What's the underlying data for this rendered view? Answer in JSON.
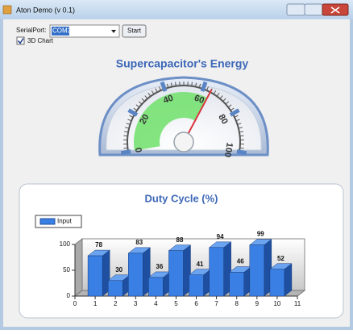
{
  "window": {
    "title": "Aton Demo (v 0.1)"
  },
  "controls": {
    "serial_label": "SerialPort:",
    "port": "COM3",
    "start_button": "Start",
    "checkbox_label": "3D Chart",
    "checkbox_checked": true
  },
  "gauge": {
    "title": "Supercapacitor's Energy",
    "value": 64,
    "lim": [
      0,
      100
    ],
    "ticks": [
      0,
      20,
      40,
      60,
      80,
      100
    ]
  },
  "duty_chart": {
    "type": "bar3d",
    "title": "Duty Cycle (%)",
    "x": [
      1,
      2,
      3,
      4,
      5,
      6,
      7,
      8,
      9,
      10
    ],
    "series": [
      {
        "name": "Input",
        "color": "#3a80e4",
        "values": [
          78,
          30,
          83,
          36,
          88,
          41,
          94,
          46,
          99,
          52
        ]
      }
    ],
    "xlim": [
      0,
      11
    ],
    "xticks": [
      0,
      1,
      2,
      3,
      4,
      5,
      6,
      7,
      8,
      9,
      10,
      11
    ],
    "ylim": [
      0,
      100
    ],
    "yticks": [
      0,
      50,
      100
    ]
  }
}
